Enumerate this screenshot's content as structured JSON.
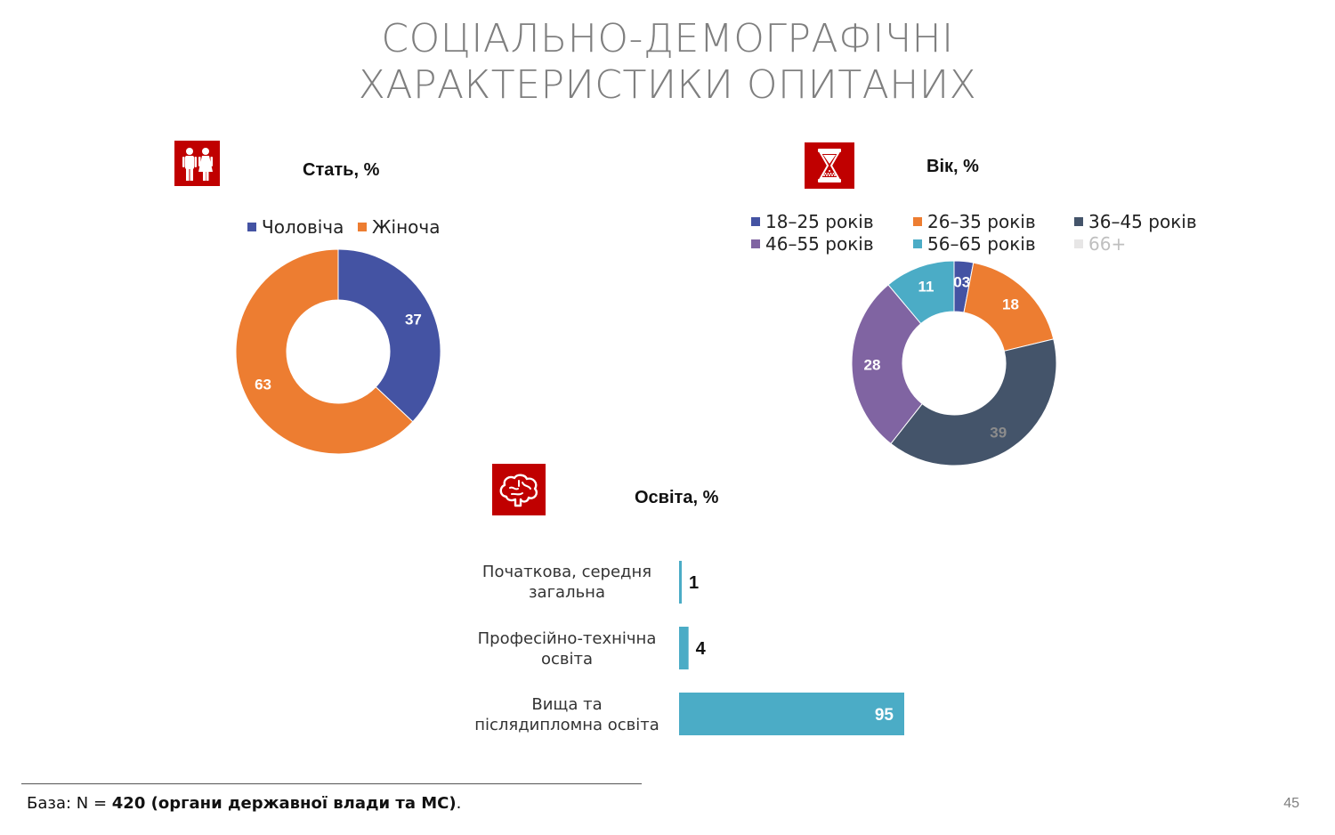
{
  "slide": {
    "title_line1": "СОЦІАЛЬНО-ДЕМОГРАФІЧНІ",
    "title_line2": "ХАРАКТЕРИСТИКИ ОПИТАНИХ",
    "footer_prefix": "База: N = ",
    "footer_bold": "420 (органи державної влади та МС)",
    "footer_suffix": ".",
    "page_number": "45",
    "icon_color": "#c00000"
  },
  "icons": {
    "gender": "people-icon",
    "age": "hourglass-icon",
    "education": "brain-icon"
  },
  "chart_data": [
    {
      "type": "pie",
      "title": "Стать, %",
      "legend_position": "top",
      "categories": [
        "Чоловіча",
        "Жіноча"
      ],
      "values": [
        37,
        63
      ],
      "labels": [
        "37",
        "63"
      ],
      "colors": [
        "#4453a3",
        "#ed7d31"
      ]
    },
    {
      "type": "pie",
      "title": "Вік, %",
      "legend_position": "top",
      "categories": [
        "18–25 років",
        "26–35 років",
        "36–45 років",
        "46–55 років",
        "56–65 років",
        "66+"
      ],
      "values": [
        3,
        18,
        39,
        28,
        11,
        0
      ],
      "labels": [
        "03",
        "18",
        "39",
        "28",
        "11",
        ""
      ],
      "colors": [
        "#4453a3",
        "#ed7d31",
        "#44546a",
        "#8064a2",
        "#4bacc6",
        "#e7e6e6"
      ]
    },
    {
      "type": "bar",
      "orientation": "horizontal",
      "title": "Освіта, %",
      "categories": [
        "Початкова, середня загальна",
        "Професійно-технічна освіта",
        "Вища та післядипломна освіта"
      ],
      "category_lines": [
        [
          "Початкова, середня",
          "загальна"
        ],
        [
          "Професійно-технічна",
          "освіта"
        ],
        [
          "Вища та",
          "післядипломна освіта"
        ]
      ],
      "values": [
        1,
        4,
        95
      ],
      "labels": [
        "1",
        "4",
        "95"
      ],
      "color": "#4bacc6"
    }
  ]
}
